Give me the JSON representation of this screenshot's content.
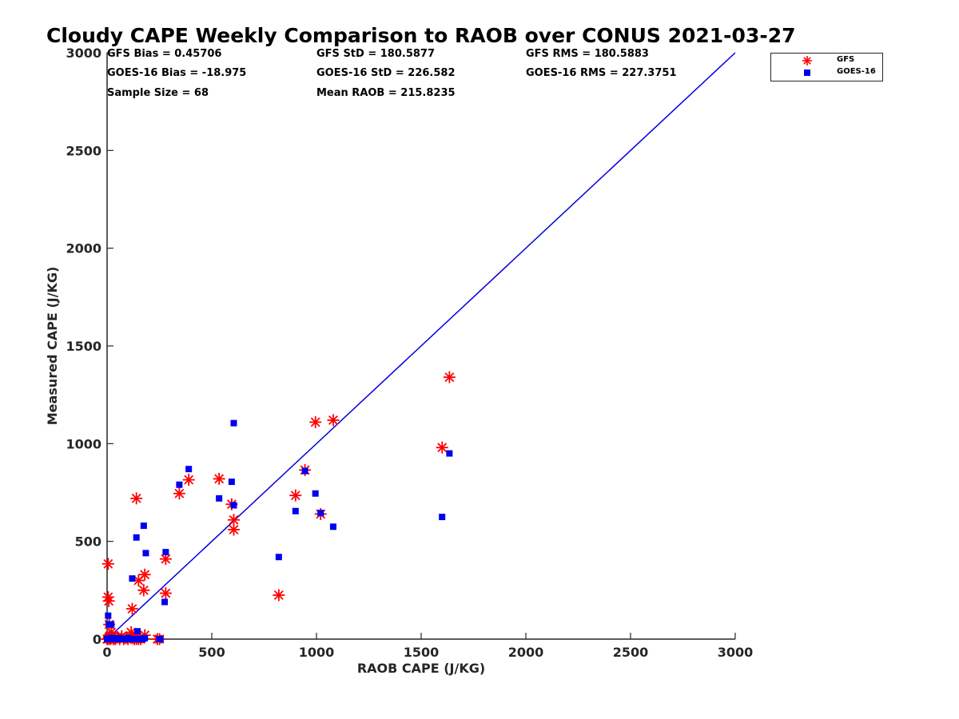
{
  "chart_data": {
    "type": "scatter",
    "title": "Cloudy CAPE Weekly Comparison to RAOB over CONUS 2021-03-27",
    "xlabel": "RAOB CAPE (J/KG)",
    "ylabel": "Measured CAPE (J/KG)",
    "xlim": [
      0,
      3000
    ],
    "ylim": [
      0,
      3000
    ],
    "xticks": [
      0,
      500,
      1000,
      1500,
      2000,
      2500,
      3000
    ],
    "yticks": [
      0,
      500,
      1000,
      1500,
      2000,
      2500,
      3000
    ],
    "legend_position": "top-right",
    "stats": {
      "gfs_bias": "GFS Bias = 0.45706",
      "gfs_std": "GFS StD = 180.5877",
      "gfs_rms": "GFS RMS = 180.5883",
      "goes_bias": "GOES-16 Bias = -18.975",
      "goes_std": "GOES-16 StD = 226.582",
      "goes_rms": "GOES-16 RMS = 227.3751",
      "sample_size": "Sample Size = 68",
      "mean_raob": "Mean RAOB = 215.8235"
    },
    "reference_line": {
      "x": [
        0,
        3000
      ],
      "y": [
        0,
        3000
      ],
      "color": "#0000dd"
    },
    "series": [
      {
        "name": "GFS",
        "marker": "asterisk",
        "color": "#ff0000",
        "points": [
          [
            0,
            0
          ],
          [
            5,
            0
          ],
          [
            8,
            5
          ],
          [
            10,
            10
          ],
          [
            15,
            0
          ],
          [
            20,
            5
          ],
          [
            25,
            10
          ],
          [
            30,
            0
          ],
          [
            35,
            5
          ],
          [
            40,
            0
          ],
          [
            50,
            10
          ],
          [
            60,
            0
          ],
          [
            70,
            15
          ],
          [
            80,
            0
          ],
          [
            90,
            5
          ],
          [
            100,
            0
          ],
          [
            110,
            10
          ],
          [
            120,
            5
          ],
          [
            130,
            0
          ],
          [
            140,
            0
          ],
          [
            150,
            0
          ],
          [
            160,
            0
          ],
          [
            180,
            20
          ],
          [
            240,
            0
          ],
          [
            250,
            0
          ],
          [
            5,
            385
          ],
          [
            5,
            215
          ],
          [
            8,
            195
          ],
          [
            10,
            75
          ],
          [
            20,
            35
          ],
          [
            115,
            35
          ],
          [
            120,
            155
          ],
          [
            140,
            720
          ],
          [
            150,
            300
          ],
          [
            175,
            250
          ],
          [
            180,
            330
          ],
          [
            280,
            410
          ],
          [
            280,
            235
          ],
          [
            345,
            745
          ],
          [
            390,
            815
          ],
          [
            535,
            820
          ],
          [
            595,
            690
          ],
          [
            605,
            610
          ],
          [
            605,
            560
          ],
          [
            820,
            225
          ],
          [
            900,
            735
          ],
          [
            945,
            865
          ],
          [
            995,
            1110
          ],
          [
            1020,
            640
          ],
          [
            1080,
            1120
          ],
          [
            1600,
            980
          ],
          [
            1635,
            1340
          ]
        ]
      },
      {
        "name": "GOES-16",
        "marker": "square",
        "color": "#0000ee",
        "points": [
          [
            0,
            0
          ],
          [
            5,
            0
          ],
          [
            8,
            5
          ],
          [
            10,
            0
          ],
          [
            15,
            5
          ],
          [
            20,
            0
          ],
          [
            25,
            0
          ],
          [
            30,
            5
          ],
          [
            40,
            0
          ],
          [
            50,
            0
          ],
          [
            60,
            5
          ],
          [
            70,
            0
          ],
          [
            80,
            0
          ],
          [
            90,
            0
          ],
          [
            100,
            5
          ],
          [
            110,
            0
          ],
          [
            130,
            0
          ],
          [
            140,
            0
          ],
          [
            170,
            0
          ],
          [
            180,
            5
          ],
          [
            250,
            0
          ],
          [
            255,
            0
          ],
          [
            5,
            120
          ],
          [
            8,
            75
          ],
          [
            20,
            75
          ],
          [
            145,
            40
          ],
          [
            120,
            310
          ],
          [
            140,
            520
          ],
          [
            175,
            580
          ],
          [
            185,
            440
          ],
          [
            275,
            190
          ],
          [
            280,
            445
          ],
          [
            345,
            790
          ],
          [
            390,
            870
          ],
          [
            535,
            720
          ],
          [
            595,
            805
          ],
          [
            605,
            685
          ],
          [
            605,
            1105
          ],
          [
            820,
            420
          ],
          [
            900,
            655
          ],
          [
            945,
            860
          ],
          [
            995,
            745
          ],
          [
            1020,
            645
          ],
          [
            1080,
            575
          ],
          [
            1600,
            625
          ],
          [
            1635,
            950
          ]
        ]
      }
    ]
  }
}
